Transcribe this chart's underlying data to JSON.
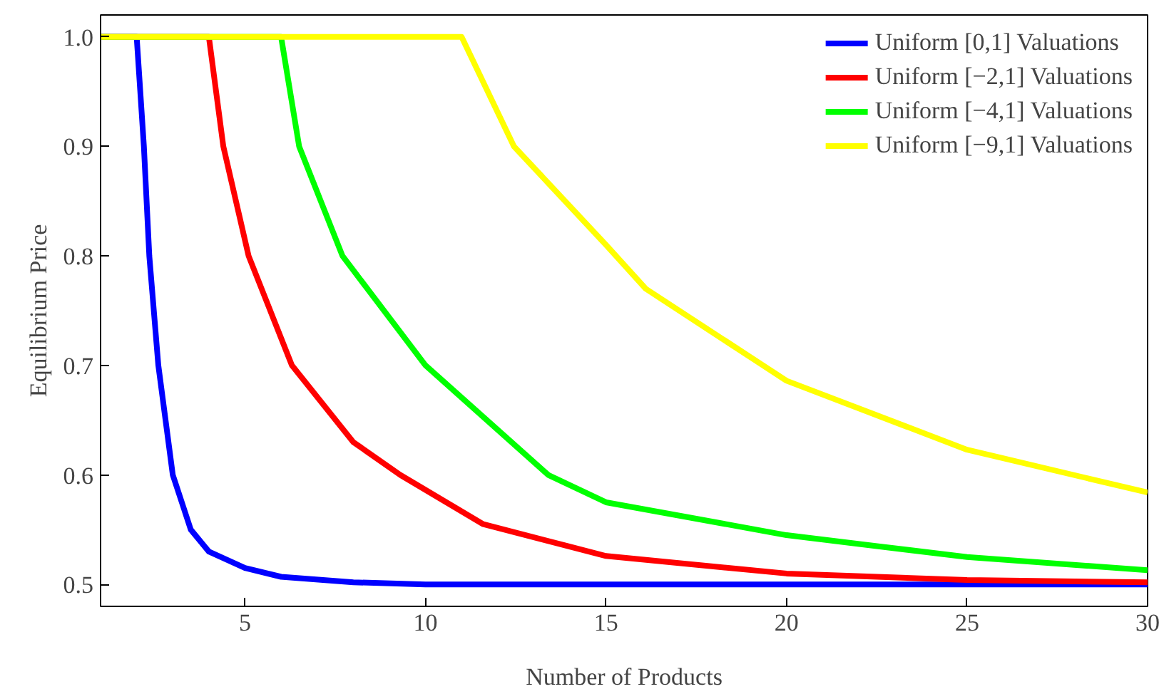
{
  "chart_data": {
    "type": "line",
    "xlabel": "Number of Products",
    "ylabel": "Equilibrium Price",
    "xlim": [
      1,
      30
    ],
    "ylim": [
      0.48,
      1.02
    ],
    "xticks": [
      5,
      10,
      15,
      20,
      25,
      30
    ],
    "yticks": [
      {
        "value": 0.5,
        "label": "0.5"
      },
      {
        "value": 0.6,
        "label": "0.6"
      },
      {
        "value": 0.7,
        "label": "0.7"
      },
      {
        "value": 0.8,
        "label": "0.8"
      },
      {
        "value": 0.9,
        "label": "0.9"
      },
      {
        "value": 1.0,
        "label": "1.0"
      }
    ],
    "grid": false,
    "legend": "top right",
    "marker": "none",
    "line_style": "solid",
    "series": [
      {
        "name": "Uniform [0,1] Valuations",
        "color": "#0000ff",
        "x": [
          1,
          2,
          2.1,
          2.2,
          2.35,
          2.6,
          3,
          3.5,
          4,
          5,
          6,
          8,
          10,
          30
        ],
        "values": [
          1.0,
          1.0,
          0.95,
          0.9,
          0.8,
          0.7,
          0.6,
          0.55,
          0.53,
          0.515,
          0.507,
          0.502,
          0.5,
          0.5
        ]
      },
      {
        "name": "Uniform [−2,1] Valuations",
        "color": "#ff0000",
        "x": [
          1,
          4,
          4.4,
          5.1,
          6.3,
          8,
          9.3,
          11.6,
          15,
          20,
          25,
          30
        ],
        "values": [
          1.0,
          1.0,
          0.9,
          0.8,
          0.7,
          0.63,
          0.6,
          0.555,
          0.526,
          0.51,
          0.504,
          0.502
        ]
      },
      {
        "name": "Uniform [−4,1] Valuations",
        "color": "#00ff00",
        "x": [
          1,
          6,
          6.5,
          7.7,
          10,
          13.4,
          15,
          20,
          25,
          30
        ],
        "values": [
          1.0,
          1.0,
          0.9,
          0.8,
          0.7,
          0.6,
          0.575,
          0.545,
          0.525,
          0.513
        ]
      },
      {
        "name": "Uniform [−9,1] Valuations",
        "color": "#ffff00",
        "x": [
          1,
          11,
          12.45,
          15,
          16.1,
          20,
          25,
          30
        ],
        "values": [
          1.0,
          1.0,
          0.9,
          0.81,
          0.77,
          0.686,
          0.623,
          0.584
        ]
      }
    ]
  }
}
